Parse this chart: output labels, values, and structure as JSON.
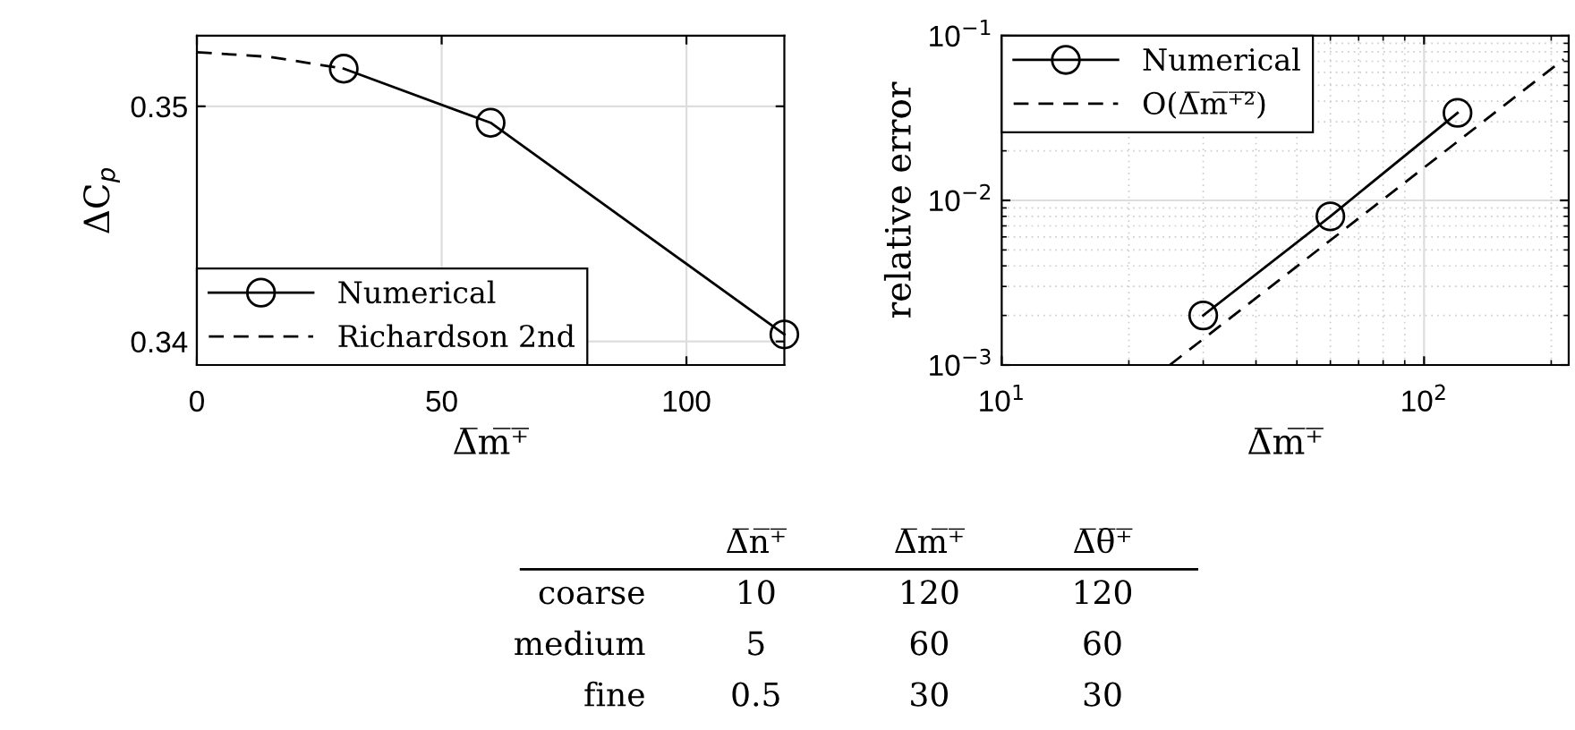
{
  "chart_data": [
    {
      "type": "line",
      "xlabel": "Δ̅m̅⁺̅",
      "ylabel": "ΔC$_{p}$",
      "xlim": [
        0,
        120
      ],
      "ylim": [
        0.339,
        0.353
      ],
      "xticks": [
        0,
        50,
        100
      ],
      "yticks": [
        0.34,
        0.35
      ],
      "grid": true,
      "legend": "bottom left",
      "series": [
        {
          "name": "Numerical",
          "color": "#000000",
          "x": [
            30,
            60,
            120
          ],
          "values": [
            0.3516,
            0.3493,
            0.3403
          ],
          "marker": "circle",
          "line_style": "solid"
        },
        {
          "name": "Richardson 2nd",
          "color": "#000000",
          "x": [
            0,
            15,
            30
          ],
          "values": [
            0.3523,
            0.3521,
            0.3516
          ],
          "marker": "none",
          "line_style": "dashed"
        }
      ]
    },
    {
      "type": "line",
      "xlabel": "Δ̅m̅⁺̅",
      "ylabel": "relative error",
      "log": "xy",
      "xlim": [
        10,
        220
      ],
      "ylim": [
        0.001,
        0.1
      ],
      "xticks": [
        {
          "value": 10,
          "label": "10$^{1}$"
        },
        {
          "value": 100,
          "label": "10$^{2}$"
        }
      ],
      "yticks": [
        {
          "value": 0.001,
          "label": "10$^{−3}$"
        },
        {
          "value": 0.01,
          "label": "10$^{−2}$"
        },
        {
          "value": 0.1,
          "label": "10$^{−1}$"
        }
      ],
      "grid": true,
      "legend": "top left",
      "series": [
        {
          "name": "Numerical",
          "color": "#000000",
          "x": [
            30,
            60,
            120
          ],
          "values": [
            0.002,
            0.008,
            0.034
          ],
          "marker": "circle",
          "line_style": "solid"
        },
        {
          "name": "O(Δ̅m̅⁺̅²̅)",
          "color": "#000000",
          "x": [
            25,
            214
          ],
          "values": [
            0.001,
            0.072
          ],
          "marker": "none",
          "line_style": "dashed"
        }
      ]
    },
    {
      "type": "other",
      "categories": [
        "Δ̅n̅⁺̅",
        "Δ̅m̅⁺̅",
        "Δ̅θ̅⁺̅"
      ],
      "y_categories": [
        "coarse",
        "medium",
        "fine"
      ],
      "cell_labels": [
        [
          "10",
          "120",
          "120"
        ],
        [
          "5",
          "60",
          "60"
        ],
        [
          "0.5",
          "30",
          "30"
        ]
      ]
    }
  ]
}
